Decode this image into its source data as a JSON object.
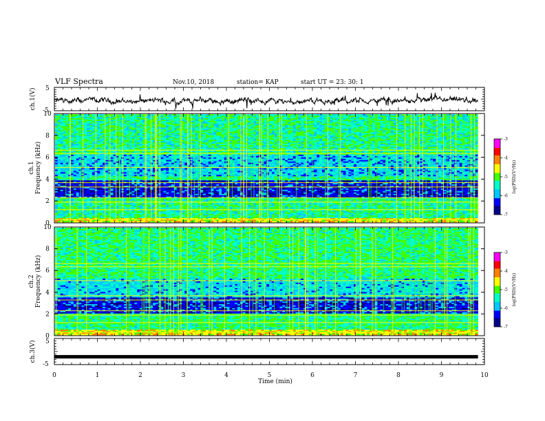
{
  "header": {
    "title": "VLF Spectra",
    "date": "Nov.10, 2018",
    "station": "station= KAP",
    "start": "start  UT  =   23: 30: 1"
  },
  "chart_data": [
    {
      "type": "line",
      "panel": "ch1-waveform",
      "ylabel": "ch.1(V)",
      "ylim": [
        -5,
        5
      ],
      "yticks": [
        -5,
        5
      ],
      "xlim": [
        0,
        10
      ],
      "x_extent": [
        0,
        9.85
      ],
      "series": [
        {
          "color": "#000000",
          "values_note_summary": "noisy signal around -1 V"
        }
      ]
    },
    {
      "type": "heatmap",
      "panel": "ch1-spectrogram",
      "ylabel": "ch.1\nFrequency (kHz)",
      "ylabel_lines": [
        "ch.1",
        "Frequency (kHz)"
      ],
      "ylim": [
        0,
        10
      ],
      "yticks": [
        0,
        2,
        4,
        6,
        8,
        10
      ],
      "xlim": [
        0,
        10
      ],
      "colorbar": {
        "label": "log(PSD)(V²/Hz)",
        "range": [
          -7,
          -3
        ],
        "ticks": [
          -3,
          -4,
          -5,
          -6,
          -7
        ]
      }
    },
    {
      "type": "heatmap",
      "panel": "ch2-spectrogram",
      "ylabel_lines": [
        "ch.2",
        "Frequency (kHz)"
      ],
      "ylim": [
        0,
        10
      ],
      "yticks": [
        0,
        2,
        4,
        6,
        8,
        10
      ],
      "xlim": [
        0,
        10
      ],
      "colorbar": {
        "label": "log(PSD)(V²/Hz)",
        "range": [
          -7,
          -3
        ],
        "ticks": [
          -3,
          -4,
          -5,
          -6,
          -7
        ]
      }
    },
    {
      "type": "line",
      "panel": "ch3-waveform",
      "ylabel": "ch.3(V)",
      "ylim": [
        -5,
        5
      ],
      "yticks": [
        -5,
        5
      ],
      "xlim": [
        0,
        10
      ],
      "series": [
        {
          "color": "#000000",
          "constant_value": -2
        }
      ]
    }
  ],
  "xaxis": {
    "label": "Time (min)",
    "ticks": [
      0,
      1,
      2,
      3,
      4,
      5,
      6,
      7,
      8,
      9,
      10
    ]
  },
  "colors": {
    "colormap": [
      "#00008b",
      "#0000ff",
      "#00c8ff",
      "#00ffc8",
      "#40ff00",
      "#ffff00",
      "#ff8000",
      "#ff0000",
      "#ff00ff"
    ]
  }
}
